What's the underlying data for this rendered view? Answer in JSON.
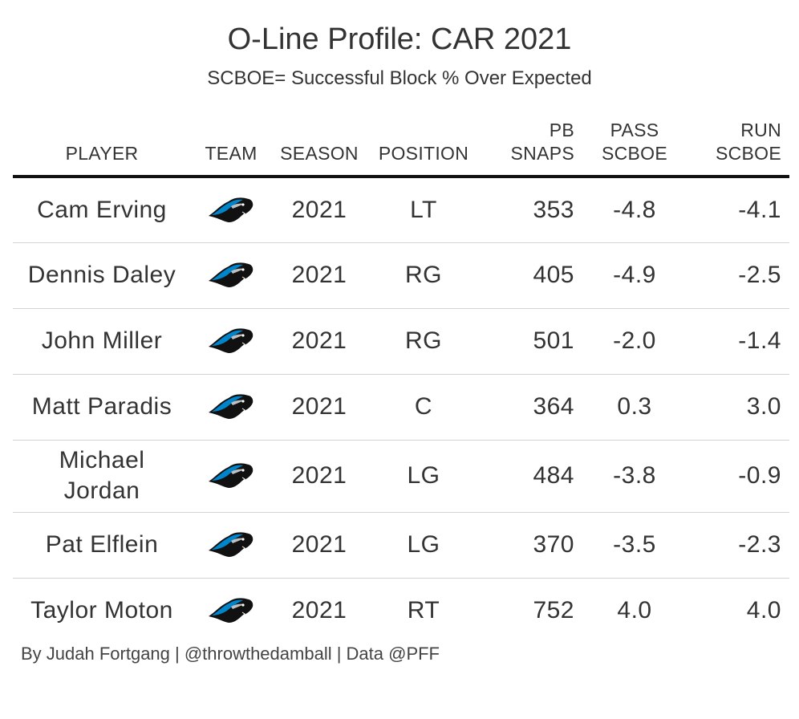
{
  "title": "O-Line Profile: CAR 2021",
  "subtitle": "SCBOE= Successful Block % Over Expected",
  "credit": "By Judah Fortgang | @throwthedamball | Data @PFF",
  "chart_data": {
    "type": "table",
    "columns": [
      "PLAYER",
      "TEAM",
      "SEASON",
      "POSITION",
      "PB\nSNAPS",
      "PASS\nSCBOE",
      "RUN\nSCBOE"
    ],
    "team_logo_icon": "panthers-logo-icon",
    "rows": [
      {
        "player": "Cam Erving",
        "season": "2021",
        "position": "LT",
        "pb_snaps": "353",
        "pass_scboe": "-4.8",
        "run_scboe": "-4.1"
      },
      {
        "player": "Dennis Daley",
        "season": "2021",
        "position": "RG",
        "pb_snaps": "405",
        "pass_scboe": "-4.9",
        "run_scboe": "-2.5"
      },
      {
        "player": "John Miller",
        "season": "2021",
        "position": "RG",
        "pb_snaps": "501",
        "pass_scboe": "-2.0",
        "run_scboe": "-1.4"
      },
      {
        "player": "Matt Paradis",
        "season": "2021",
        "position": "C",
        "pb_snaps": "364",
        "pass_scboe": "0.3",
        "run_scboe": "3.0"
      },
      {
        "player": "Michael Jordan",
        "season": "2021",
        "position": "LG",
        "pb_snaps": "484",
        "pass_scboe": "-3.8",
        "run_scboe": "-0.9"
      },
      {
        "player": "Pat Elflein",
        "season": "2021",
        "position": "LG",
        "pb_snaps": "370",
        "pass_scboe": "-3.5",
        "run_scboe": "-2.3"
      },
      {
        "player": "Taylor Moton",
        "season": "2021",
        "position": "RT",
        "pb_snaps": "752",
        "pass_scboe": "4.0",
        "run_scboe": "4.0"
      }
    ]
  }
}
